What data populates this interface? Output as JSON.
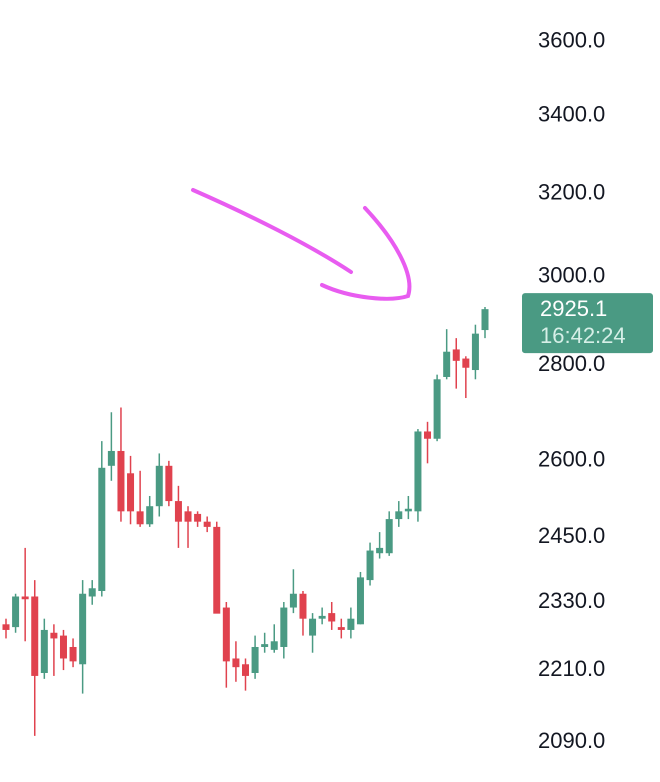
{
  "chart_data": {
    "type": "candlestick",
    "log_scale": true,
    "ylim": [
      2026,
      3719
    ],
    "yticks": [
      {
        "value": 3600,
        "label": "3600.0"
      },
      {
        "value": 3400,
        "label": "3400.0"
      },
      {
        "value": 3200,
        "label": "3200.0"
      },
      {
        "value": 3000,
        "label": "3000.0"
      },
      {
        "value": 2800,
        "label": "2800.0"
      },
      {
        "value": 2600,
        "label": "2600.0"
      },
      {
        "value": 2450,
        "label": "2450.0"
      },
      {
        "value": 2330,
        "label": "2330.0"
      },
      {
        "value": 2210,
        "label": "2210.0"
      },
      {
        "value": 2090,
        "label": "2090.0"
      }
    ],
    "up_color": "#4a9a83",
    "down_color": "#e0424e",
    "open": [
      2290,
      2285,
      2340,
      2340,
      2205,
      2275,
      2270,
      2250,
      2220,
      2340,
      2350,
      2590,
      2620,
      2575,
      2500,
      2475,
      2510,
      2590,
      2520,
      2500,
      2495,
      2480,
      2470,
      2320,
      2230,
      2220,
      2205,
      2250,
      2245,
      2250,
      2320,
      2345,
      2270,
      2300,
      2310,
      2285,
      2280,
      2290,
      2370,
      2420,
      2420,
      2485,
      2500,
      2500,
      2660,
      2645,
      2775,
      2835,
      2815,
      2790,
      2878
    ],
    "high": [
      2300,
      2345,
      2430,
      2370,
      2300,
      2290,
      2280,
      2265,
      2370,
      2370,
      2640,
      2700,
      2710,
      2610,
      2580,
      2530,
      2615,
      2600,
      2550,
      2510,
      2500,
      2490,
      2480,
      2330,
      2260,
      2230,
      2270,
      2275,
      2290,
      2330,
      2390,
      2350,
      2310,
      2320,
      2330,
      2300,
      2320,
      2385,
      2440,
      2460,
      2500,
      2520,
      2530,
      2665,
      2680,
      2780,
      2880,
      2860,
      2820,
      2890,
      2930
    ],
    "low": [
      2265,
      2275,
      2260,
      2100,
      2195,
      2200,
      2210,
      2215,
      2170,
      2325,
      2340,
      2560,
      2480,
      2475,
      2470,
      2470,
      2490,
      2510,
      2430,
      2430,
      2470,
      2460,
      2310,
      2180,
      2190,
      2175,
      2195,
      2240,
      2240,
      2230,
      2310,
      2270,
      2240,
      2290,
      2280,
      2265,
      2265,
      2290,
      2360,
      2410,
      2415,
      2470,
      2485,
      2480,
      2595,
      2640,
      2770,
      2750,
      2730,
      2770,
      2860
    ],
    "close": [
      2280,
      2340,
      2335,
      2200,
      2280,
      2265,
      2230,
      2225,
      2345,
      2355,
      2586,
      2620,
      2500,
      2500,
      2475,
      2510,
      2590,
      2520,
      2480,
      2480,
      2480,
      2470,
      2309,
      2225,
      2215,
      2200,
      2250,
      2255,
      2260,
      2320,
      2345,
      2300,
      2300,
      2305,
      2295,
      2280,
      2300,
      2375,
      2425,
      2430,
      2485,
      2500,
      2505,
      2660,
      2645,
      2770,
      2830,
      2810,
      2795,
      2870,
      2925.1
    ],
    "last_price": 2925.1,
    "countdown": "16:42:24",
    "tag_color": "#4a9a83",
    "annotation_color": "#e85cf0"
  }
}
